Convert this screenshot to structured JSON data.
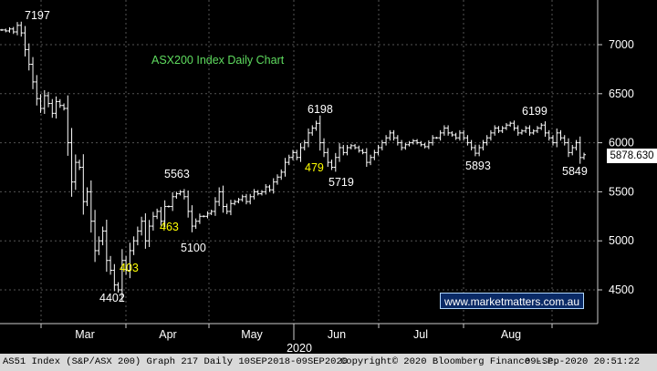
{
  "chart_data": {
    "type": "ohlc",
    "title": "ASX200 Index Daily Chart",
    "y_ticks": [
      4500,
      5000,
      5500,
      6000,
      6500,
      7000
    ],
    "y_range": [
      4300,
      7350
    ],
    "x_month_labels": [
      "Mar",
      "Apr",
      "May",
      "Jun",
      "Jul",
      "Aug"
    ],
    "x_year_label": "2020",
    "last_price_label": "5878.630",
    "annotations": [
      {
        "text": "7197",
        "color": "#ffffff",
        "kind": "high"
      },
      {
        "text": "5563",
        "color": "#ffffff",
        "kind": "high"
      },
      {
        "text": "6198",
        "color": "#ffffff",
        "kind": "high"
      },
      {
        "text": "6199",
        "color": "#ffffff",
        "kind": "high"
      },
      {
        "text": "4402",
        "color": "#ffffff",
        "kind": "low"
      },
      {
        "text": "5100",
        "color": "#ffffff",
        "kind": "low"
      },
      {
        "text": "5719",
        "color": "#ffffff",
        "kind": "low"
      },
      {
        "text": "5893",
        "color": "#ffffff",
        "kind": "low"
      },
      {
        "text": "5849",
        "color": "#ffffff",
        "kind": "low"
      },
      {
        "text": "403",
        "color": "#ffff00",
        "kind": "move"
      },
      {
        "text": "463",
        "color": "#ffff00",
        "kind": "move"
      },
      {
        "text": "479",
        "color": "#ffff00",
        "kind": "move"
      }
    ],
    "closes": [
      7150,
      7140,
      7160,
      7130,
      7197,
      7120,
      6950,
      6800,
      6620,
      6450,
      6350,
      6480,
      6400,
      6300,
      6420,
      6380,
      6350,
      6000,
      5600,
      5800,
      5750,
      5400,
      5500,
      5200,
      4900,
      5000,
      5100,
      4800,
      4700,
      4550,
      4500,
      4800,
      4700,
      4900,
      5000,
      5100,
      5200,
      5000,
      5150,
      5250,
      5300,
      5200,
      5350,
      5350,
      5450,
      5480,
      5500,
      5450,
      5300,
      5150,
      5200,
      5250,
      5250,
      5280,
      5300,
      5400,
      5500,
      5350,
      5300,
      5380,
      5400,
      5420,
      5450,
      5400,
      5450,
      5500,
      5480,
      5500,
      5550,
      5520,
      5600,
      5650,
      5700,
      5800,
      5850,
      5900,
      5850,
      5950,
      6000,
      6100,
      6150,
      6198,
      6000,
      5900,
      5800,
      5750,
      5850,
      5950,
      5900,
      5950,
      5970,
      5950,
      5920,
      5900,
      5800,
      5850,
      5900,
      5950,
      6000,
      6050,
      6100,
      6050,
      6000,
      5950,
      5980,
      6000,
      6020,
      6000,
      5980,
      5960,
      6000,
      6050,
      6050,
      6100,
      6150,
      6100,
      6080,
      6050,
      6100,
      6050,
      6000,
      5950,
      5893,
      5950,
      6000,
      6050,
      6100,
      6150,
      6120,
      6150,
      6180,
      6199,
      6150,
      6100,
      6120,
      6150,
      6100,
      6120,
      6150,
      6180,
      6100,
      6050,
      6000,
      6100,
      6050,
      6000,
      5900,
      5950,
      6000,
      5849,
      5878
    ]
  },
  "footer": {
    "left": "AS51 Index (S&P/ASX 200) Graph 217  Daily 10SEP2018-09SEP2020",
    "middle": "Copyright© 2020 Bloomberg Finance L.P.",
    "right": "09-Sep-2020 20:51:22"
  },
  "watermark": "www.marketmatters.com.au"
}
